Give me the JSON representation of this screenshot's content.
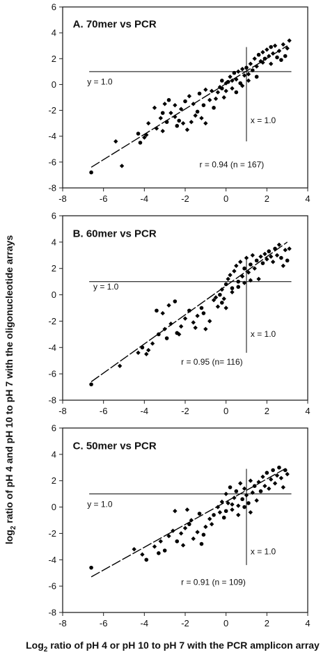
{
  "figure": {
    "ylabel_prefix": "log",
    "ylabel_sub": "2",
    "ylabel_rest": " ratio of pH 4 and pH 10 to pH 7 with the oligonucleotide arrays",
    "xlabel_prefix": "Log",
    "xlabel_sub": "2",
    "xlabel_rest": " ratio of pH 4 or pH 10 to pH 7 with the PCR amplicon array"
  },
  "chart_data": [
    {
      "type": "scatter",
      "title": "A. 70mer vs PCR",
      "xlim": [
        -8,
        4
      ],
      "ylim": [
        -8,
        6
      ],
      "xticks": [
        -8,
        -6,
        -4,
        -2,
        0,
        2,
        4
      ],
      "yticks": [
        -8,
        -6,
        -4,
        -2,
        0,
        2,
        4,
        6
      ],
      "reference_lines": {
        "y": 1.0,
        "x": 1.0,
        "y_label": "y = 1.0",
        "x_label": "x = 1.0"
      },
      "fit_line": {
        "x": [
          -6.6,
          3.0
        ],
        "y": [
          -6.4,
          3.0
        ]
      },
      "stats": "r = 0.94 (n = 167)",
      "points": [
        [
          -6.6,
          -6.8
        ],
        [
          -5.1,
          -6.3
        ],
        [
          -5.4,
          -4.4
        ],
        [
          -4.2,
          -4.5
        ],
        [
          -4.0,
          -4.1
        ],
        [
          -3.9,
          -3.9
        ],
        [
          -4.3,
          -3.8
        ],
        [
          -3.4,
          -3.4
        ],
        [
          -3.1,
          -3.6
        ],
        [
          -2.9,
          -2.9
        ],
        [
          -2.7,
          -2.2
        ],
        [
          -2.5,
          -2.5
        ],
        [
          -2.3,
          -2.8
        ],
        [
          -2.1,
          -3.0
        ],
        [
          -1.9,
          -3.5
        ],
        [
          -3.1,
          -2.2
        ],
        [
          -3.5,
          -1.8
        ],
        [
          -3.0,
          -1.5
        ],
        [
          -2.8,
          -1.2
        ],
        [
          -2.5,
          -1.6
        ],
        [
          -2.2,
          -1.9
        ],
        [
          -2.0,
          -1.3
        ],
        [
          -1.8,
          -0.9
        ],
        [
          -1.6,
          -1.5
        ],
        [
          -1.4,
          -2.1
        ],
        [
          -1.2,
          -2.6
        ],
        [
          -1.0,
          -3.0
        ],
        [
          -1.3,
          -0.7
        ],
        [
          -1.0,
          -0.4
        ],
        [
          -0.8,
          -1.2
        ],
        [
          -0.6,
          -1.8
        ],
        [
          -0.4,
          -0.6
        ],
        [
          -0.3,
          -0.2
        ],
        [
          -0.2,
          0.3
        ],
        [
          -0.1,
          -1.0
        ],
        [
          0.0,
          -0.5
        ],
        [
          0.1,
          0.2
        ],
        [
          0.2,
          0.6
        ],
        [
          0.3,
          -0.3
        ],
        [
          0.4,
          0.9
        ],
        [
          0.5,
          0.4
        ],
        [
          0.6,
          1.0
        ],
        [
          0.7,
          0.1
        ],
        [
          0.8,
          1.2
        ],
        [
          0.9,
          0.7
        ],
        [
          1.0,
          1.3
        ],
        [
          1.1,
          0.8
        ],
        [
          1.2,
          1.6
        ],
        [
          1.3,
          1.1
        ],
        [
          1.4,
          2.0
        ],
        [
          1.5,
          1.4
        ],
        [
          1.6,
          2.3
        ],
        [
          1.7,
          1.8
        ],
        [
          1.8,
          2.5
        ],
        [
          1.9,
          2.0
        ],
        [
          2.0,
          2.7
        ],
        [
          2.1,
          2.2
        ],
        [
          2.2,
          2.9
        ],
        [
          2.3,
          2.4
        ],
        [
          2.4,
          3.0
        ],
        [
          2.5,
          2.1
        ],
        [
          2.6,
          2.6
        ],
        [
          2.8,
          3.1
        ],
        [
          2.9,
          2.2
        ],
        [
          3.0,
          2.8
        ],
        [
          3.1,
          3.4
        ],
        [
          2.7,
          1.9
        ],
        [
          2.2,
          1.6
        ],
        [
          1.8,
          1.7
        ],
        [
          1.5,
          0.6
        ],
        [
          1.1,
          0.3
        ],
        [
          0.8,
          -0.1
        ],
        [
          0.5,
          -0.6
        ],
        [
          0.3,
          0.3
        ],
        [
          0.0,
          0.1
        ],
        [
          -0.2,
          -0.3
        ],
        [
          -0.5,
          -1.1
        ],
        [
          -0.7,
          -0.5
        ],
        [
          -1.1,
          -1.6
        ],
        [
          -1.5,
          -2.4
        ],
        [
          -1.7,
          -2.9
        ],
        [
          -2.4,
          -3.2
        ],
        [
          -3.2,
          -2.6
        ],
        [
          -3.8,
          -3.0
        ]
      ]
    },
    {
      "type": "scatter",
      "title": "B. 60mer vs PCR",
      "xlim": [
        -8,
        4
      ],
      "ylim": [
        -8,
        6
      ],
      "xticks": [
        -8,
        -6,
        -4,
        -2,
        0,
        2,
        4
      ],
      "yticks": [
        -8,
        -6,
        -4,
        -2,
        0,
        2,
        4,
        6
      ],
      "reference_lines": {
        "y": 1.0,
        "x": 1.0,
        "y_label": "y = 1.0",
        "x_label": "x = 1.0"
      },
      "fit_line": {
        "x": [
          -6.6,
          3.0
        ],
        "y": [
          -6.6,
          4.0
        ]
      },
      "stats": "r = 0.95 (n= 116)",
      "points": [
        [
          -6.6,
          -6.8
        ],
        [
          -5.2,
          -5.4
        ],
        [
          -4.3,
          -4.4
        ],
        [
          -4.1,
          -4.0
        ],
        [
          -3.8,
          -4.2
        ],
        [
          -3.6,
          -3.7
        ],
        [
          -3.3,
          -3.0
        ],
        [
          -3.0,
          -2.6
        ],
        [
          -2.7,
          -2.2
        ],
        [
          -2.4,
          -2.9
        ],
        [
          -2.2,
          -2.4
        ],
        [
          -2.0,
          -1.8
        ],
        [
          -1.8,
          -1.2
        ],
        [
          -1.6,
          -2.1
        ],
        [
          -1.4,
          -1.6
        ],
        [
          -1.2,
          -1.0
        ],
        [
          -1.0,
          -2.6
        ],
        [
          -0.8,
          -2.0
        ],
        [
          -3.4,
          -1.2
        ],
        [
          -3.1,
          -1.4
        ],
        [
          -2.8,
          -0.8
        ],
        [
          -2.5,
          -0.5
        ],
        [
          -0.6,
          -0.4
        ],
        [
          -0.4,
          -0.9
        ],
        [
          -0.3,
          0.0
        ],
        [
          -0.2,
          0.4
        ],
        [
          -0.1,
          -0.3
        ],
        [
          0.0,
          0.8
        ],
        [
          0.1,
          1.2
        ],
        [
          0.2,
          1.5
        ],
        [
          0.3,
          0.5
        ],
        [
          0.4,
          1.8
        ],
        [
          0.5,
          2.2
        ],
        [
          0.6,
          1.0
        ],
        [
          0.7,
          2.5
        ],
        [
          0.8,
          1.4
        ],
        [
          0.9,
          2.0
        ],
        [
          1.0,
          2.8
        ],
        [
          1.1,
          1.7
        ],
        [
          1.2,
          2.3
        ],
        [
          1.3,
          3.0
        ],
        [
          1.4,
          2.0
        ],
        [
          1.5,
          2.6
        ],
        [
          1.6,
          1.2
        ],
        [
          1.7,
          2.9
        ],
        [
          1.8,
          2.4
        ],
        [
          1.9,
          3.1
        ],
        [
          2.0,
          2.7
        ],
        [
          2.1,
          3.3
        ],
        [
          2.2,
          2.9
        ],
        [
          2.3,
          2.5
        ],
        [
          2.4,
          3.5
        ],
        [
          2.5,
          3.0
        ],
        [
          2.6,
          3.8
        ],
        [
          2.7,
          2.8
        ],
        [
          2.8,
          2.2
        ],
        [
          2.9,
          3.4
        ],
        [
          3.0,
          2.6
        ],
        [
          3.1,
          3.5
        ],
        [
          -0.5,
          -0.2
        ],
        [
          -0.2,
          -0.6
        ],
        [
          0.0,
          -1.0
        ],
        [
          0.3,
          0.2
        ],
        [
          0.6,
          0.6
        ],
        [
          0.9,
          0.9
        ],
        [
          1.2,
          1.1
        ],
        [
          -1.1,
          -1.4
        ],
        [
          -1.5,
          -2.5
        ],
        [
          -2.3,
          -3.0
        ],
        [
          -2.9,
          -3.3
        ],
        [
          -3.9,
          -4.5
        ]
      ]
    },
    {
      "type": "scatter",
      "title": "C. 50mer vs PCR",
      "xlim": [
        -8,
        4
      ],
      "ylim": [
        -8,
        6
      ],
      "xticks": [
        -8,
        -6,
        -4,
        -2,
        0,
        2,
        4
      ],
      "yticks": [
        -8,
        -6,
        -4,
        -2,
        0,
        2,
        4,
        6
      ],
      "reference_lines": {
        "y": 1.0,
        "x": 1.0,
        "y_label": "y = 1.0",
        "x_label": "x = 1.0"
      },
      "fit_line": {
        "x": [
          -6.6,
          3.0
        ],
        "y": [
          -5.3,
          3.0
        ]
      },
      "stats": "r = 0.91 (n = 109)",
      "points": [
        [
          -6.6,
          -4.6
        ],
        [
          -4.5,
          -3.2
        ],
        [
          -4.1,
          -3.6
        ],
        [
          -3.9,
          -4.0
        ],
        [
          -3.5,
          -3.0
        ],
        [
          -3.2,
          -2.6
        ],
        [
          -3.0,
          -3.3
        ],
        [
          -2.8,
          -2.2
        ],
        [
          -2.6,
          -1.8
        ],
        [
          -2.4,
          -2.6
        ],
        [
          -2.2,
          -2.0
        ],
        [
          -2.0,
          -1.6
        ],
        [
          -1.8,
          -1.3
        ],
        [
          -1.6,
          -2.4
        ],
        [
          -1.4,
          -1.9
        ],
        [
          -1.2,
          -2.8
        ],
        [
          -1.0,
          -1.5
        ],
        [
          -0.8,
          -0.9
        ],
        [
          -0.6,
          -0.6
        ],
        [
          -2.5,
          -0.3
        ],
        [
          -1.9,
          -0.2
        ],
        [
          -1.3,
          -0.5
        ],
        [
          -0.4,
          0.0
        ],
        [
          -0.2,
          0.4
        ],
        [
          -0.1,
          -0.8
        ],
        [
          0.0,
          1.0
        ],
        [
          0.1,
          0.3
        ],
        [
          0.2,
          1.5
        ],
        [
          0.3,
          -0.2
        ],
        [
          0.4,
          0.7
        ],
        [
          0.5,
          1.2
        ],
        [
          0.6,
          0.1
        ],
        [
          0.7,
          1.8
        ],
        [
          0.8,
          0.6
        ],
        [
          0.9,
          1.4
        ],
        [
          1.0,
          0.9
        ],
        [
          1.1,
          0.3
        ],
        [
          1.2,
          2.0
        ],
        [
          1.3,
          1.1
        ],
        [
          1.4,
          1.6
        ],
        [
          1.5,
          0.5
        ],
        [
          1.6,
          1.9
        ],
        [
          1.7,
          1.2
        ],
        [
          1.8,
          2.3
        ],
        [
          1.9,
          1.6
        ],
        [
          2.0,
          2.6
        ],
        [
          2.1,
          1.4
        ],
        [
          2.2,
          2.1
        ],
        [
          2.3,
          2.8
        ],
        [
          2.4,
          1.8
        ],
        [
          2.5,
          2.4
        ],
        [
          2.6,
          3.0
        ],
        [
          2.7,
          2.2
        ],
        [
          2.8,
          1.5
        ],
        [
          2.9,
          2.8
        ],
        [
          3.0,
          2.5
        ],
        [
          -0.3,
          -0.4
        ],
        [
          0.0,
          -0.3
        ],
        [
          0.3,
          0.2
        ],
        [
          0.6,
          -0.6
        ],
        [
          0.9,
          0.0
        ],
        [
          1.2,
          -0.4
        ],
        [
          -0.7,
          -1.3
        ],
        [
          -1.1,
          -2.1
        ],
        [
          -1.7,
          -1.0
        ],
        [
          -2.1,
          -2.9
        ],
        [
          -3.3,
          -3.5
        ]
      ]
    }
  ]
}
